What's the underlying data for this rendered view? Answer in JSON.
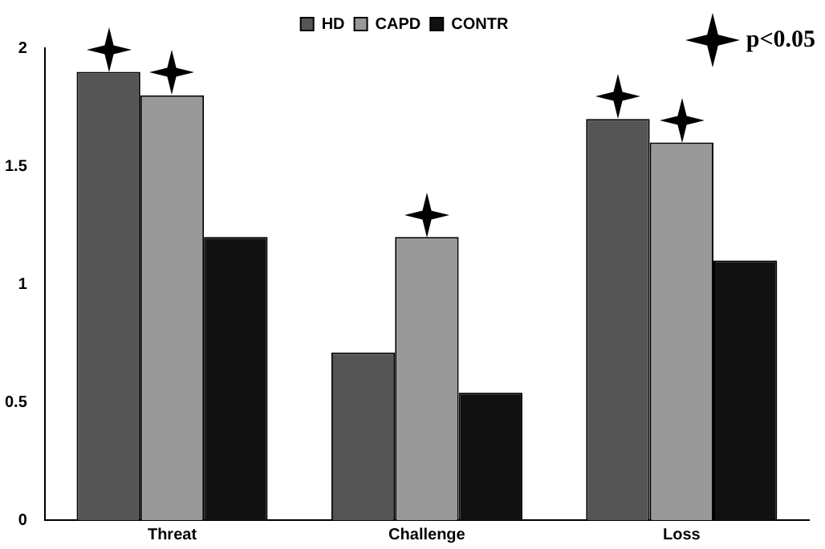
{
  "chart_data": {
    "type": "bar",
    "categories": [
      "Threat",
      "Challenge",
      "Loss"
    ],
    "series": [
      {
        "name": "HD",
        "color": "#555555",
        "values": [
          1.9,
          0.71,
          1.7
        ]
      },
      {
        "name": "CAPD",
        "color": "#999999",
        "values": [
          1.8,
          1.2,
          1.6
        ]
      },
      {
        "name": "CONTR",
        "color": "#111111",
        "values": [
          1.2,
          0.54,
          1.1
        ]
      }
    ],
    "ylim": [
      0,
      2
    ],
    "yticks": [
      0,
      0.5,
      1,
      1.5,
      2
    ],
    "grid": false,
    "legend": "top",
    "annotations": [
      "p<0.05"
    ]
  }
}
